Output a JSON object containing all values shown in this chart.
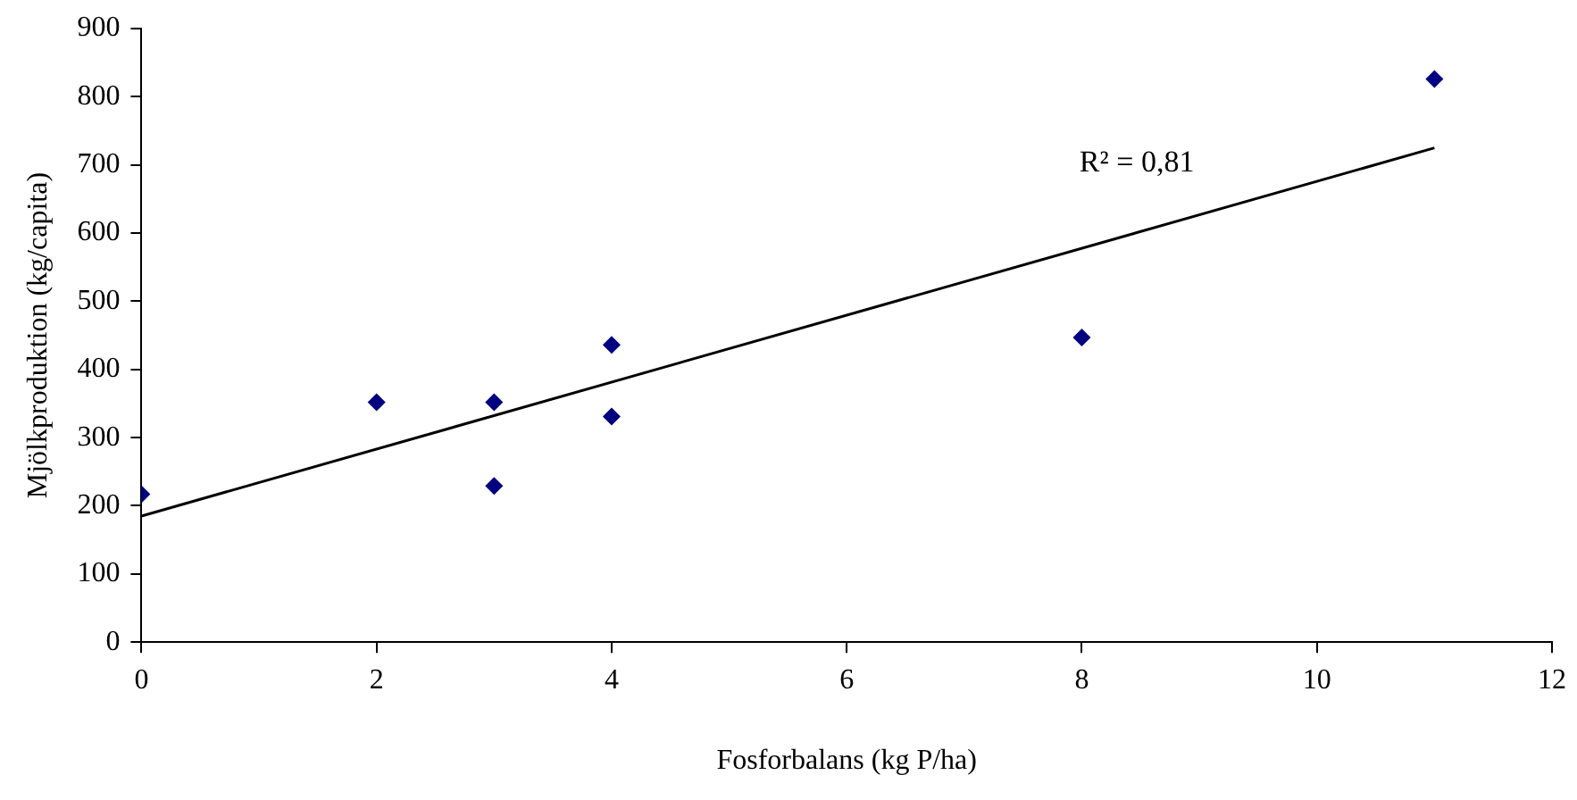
{
  "chart_data": {
    "type": "scatter",
    "xlabel": "Fosforbalans (kg P/ha)",
    "ylabel": "Mjölkproduktion (kg/capita)",
    "x": [
      0,
      2,
      3,
      3,
      4,
      4,
      8,
      11
    ],
    "series": [
      {
        "color": "#000080",
        "values": [
          217,
          352,
          352,
          229,
          436,
          331,
          447,
          826
        ],
        "marker": "diamond"
      },
      {
        "type": "line",
        "color": "#000000",
        "x": [
          0,
          11
        ],
        "values": [
          185,
          725
        ],
        "marker": "none"
      }
    ],
    "annotations": [
      "R² = 0,81"
    ],
    "xlim": [
      0,
      12
    ],
    "xticks": [
      0,
      2,
      4,
      6,
      8,
      10,
      12
    ],
    "ylim": [
      0,
      900
    ],
    "yticks": [
      0,
      100,
      200,
      300,
      400,
      500,
      600,
      700,
      800,
      900
    ],
    "grid": false,
    "legend": false
  }
}
